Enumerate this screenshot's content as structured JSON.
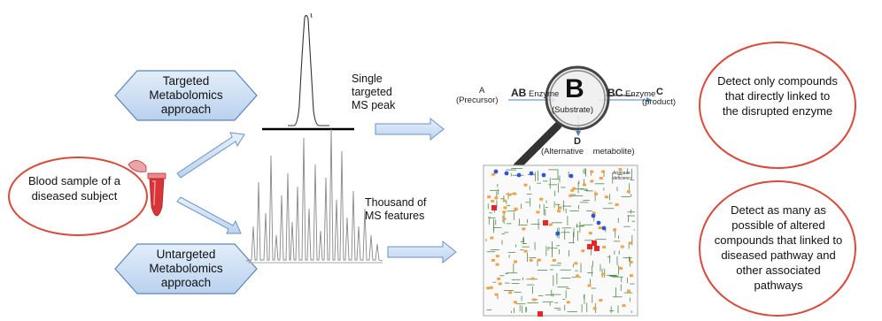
{
  "hexagons": {
    "targeted": "Targeted Metabolomics approach",
    "untargeted": "Untargeted Metabolomics approach"
  },
  "sample": {
    "label": "Blood sample of a diseased subject"
  },
  "peaks": {
    "single": "Single targeted MS peak",
    "thousand": "Thousand of MS features"
  },
  "pathway": {
    "a_label": "A",
    "precursor": "(Precursor)",
    "ab_label": "AB",
    "enzyme_left": "Enzyme",
    "b_label": "B",
    "substrate": "(Substrate)",
    "bc_label": "BC",
    "enzyme_right": "Enzyme",
    "c_label": "C",
    "product": "(product)",
    "d_label": "D",
    "alternative": "(Alternative    metabolite)"
  },
  "network_map": {
    "corner_label": "Arginase deficiency"
  },
  "outcomes": {
    "targeted": "Detect only compounds that directly linked to the disrupted enzyme",
    "untargeted": "Detect  as many as possible of altered compounds that linked to diseased pathway  and other associated pathways"
  },
  "colors": {
    "hex_fill": "#cfe0f3",
    "hex_stroke": "#5b84bd",
    "arrow_fill": "#d2e3f6",
    "arrow_stroke": "#6b93c6",
    "oval_stroke": "#d94a3c",
    "tube": "#d8343a",
    "network_line": "#4e8a4e",
    "node_orange": "#f0a24a",
    "node_red": "#e8262a",
    "node_blue": "#2f55d4"
  }
}
